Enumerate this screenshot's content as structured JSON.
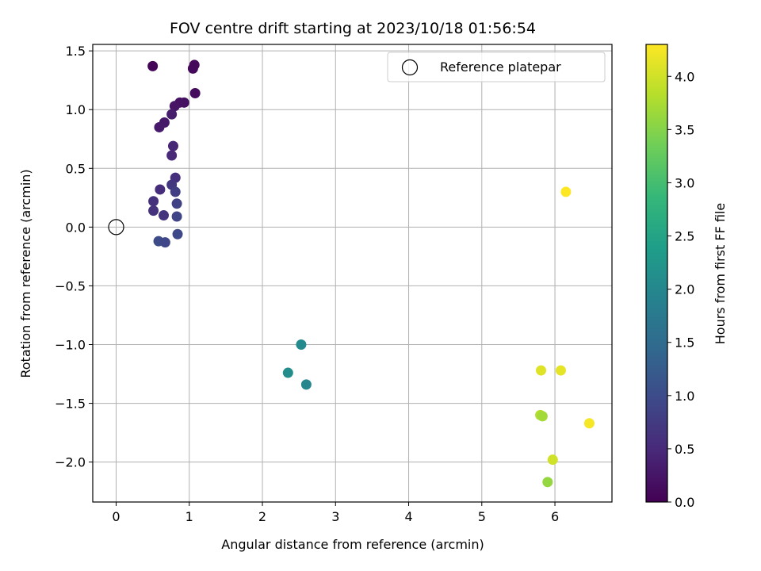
{
  "chart_data": {
    "type": "scatter",
    "title": "FOV centre drift starting at 2023/10/18 01:56:54",
    "xlabel": "Angular distance from reference (arcmin)",
    "ylabel": "Rotation from reference (arcmin)",
    "xlim": [
      -0.32,
      6.78
    ],
    "ylim": [
      -2.34,
      1.555
    ],
    "xticks": [
      0,
      1,
      2,
      3,
      4,
      5,
      6
    ],
    "xtick_labels": [
      "0",
      "1",
      "2",
      "3",
      "4",
      "5",
      "6"
    ],
    "yticks": [
      -2.0,
      -1.5,
      -1.0,
      -0.5,
      0.0,
      0.5,
      1.0,
      1.5
    ],
    "ytick_labels": [
      "−2.0",
      "−1.5",
      "−1.0",
      "−0.5",
      "0.0",
      "0.5",
      "1.0",
      "1.5"
    ],
    "grid": true,
    "colormap": "viridis",
    "colorbar": {
      "label": "Hours from first FF file",
      "range": [
        0.0,
        4.3
      ],
      "ticks": [
        0.0,
        0.5,
        1.0,
        1.5,
        2.0,
        2.5,
        3.0,
        3.5,
        4.0
      ],
      "tick_labels": [
        "0.0",
        "0.5",
        "1.0",
        "1.5",
        "2.0",
        "2.5",
        "3.0",
        "3.5",
        "4.0"
      ]
    },
    "legend": {
      "placement": "top-right",
      "entries": [
        {
          "label": "Reference platepar",
          "marker": "open-circle"
        }
      ]
    },
    "reference_point": {
      "x": 0.0,
      "y": 0.0
    },
    "points": [
      {
        "x": 0.5,
        "y": 1.37,
        "hours": 0.05
      },
      {
        "x": 1.07,
        "y": 1.38,
        "hours": 0.08
      },
      {
        "x": 1.05,
        "y": 1.35,
        "hours": 0.1
      },
      {
        "x": 1.08,
        "y": 1.14,
        "hours": 0.13
      },
      {
        "x": 0.93,
        "y": 1.06,
        "hours": 0.18
      },
      {
        "x": 0.87,
        "y": 1.06,
        "hours": 0.2
      },
      {
        "x": 0.8,
        "y": 1.03,
        "hours": 0.22
      },
      {
        "x": 0.76,
        "y": 0.96,
        "hours": 0.35
      },
      {
        "x": 0.66,
        "y": 0.89,
        "hours": 0.28
      },
      {
        "x": 0.59,
        "y": 0.85,
        "hours": 0.3
      },
      {
        "x": 0.78,
        "y": 0.69,
        "hours": 0.45
      },
      {
        "x": 0.76,
        "y": 0.61,
        "hours": 0.5
      },
      {
        "x": 0.81,
        "y": 0.42,
        "hours": 0.58
      },
      {
        "x": 0.76,
        "y": 0.36,
        "hours": 0.7
      },
      {
        "x": 0.81,
        "y": 0.3,
        "hours": 0.8
      },
      {
        "x": 0.6,
        "y": 0.32,
        "hours": 0.55
      },
      {
        "x": 0.51,
        "y": 0.22,
        "hours": 0.6
      },
      {
        "x": 0.83,
        "y": 0.2,
        "hours": 0.85
      },
      {
        "x": 0.51,
        "y": 0.14,
        "hours": 0.62
      },
      {
        "x": 0.65,
        "y": 0.1,
        "hours": 0.65
      },
      {
        "x": 0.83,
        "y": 0.09,
        "hours": 0.9
      },
      {
        "x": 0.84,
        "y": -0.06,
        "hours": 0.95
      },
      {
        "x": 0.58,
        "y": -0.12,
        "hours": 1.0
      },
      {
        "x": 0.67,
        "y": -0.13,
        "hours": 0.92
      },
      {
        "x": 2.53,
        "y": -1.0,
        "hours": 2.05
      },
      {
        "x": 2.35,
        "y": -1.24,
        "hours": 2.1
      },
      {
        "x": 2.6,
        "y": -1.34,
        "hours": 2.0
      },
      {
        "x": 6.15,
        "y": 0.3,
        "hours": 4.3
      },
      {
        "x": 5.81,
        "y": -1.22,
        "hours": 4.1
      },
      {
        "x": 6.08,
        "y": -1.22,
        "hours": 4.15
      },
      {
        "x": 5.8,
        "y": -1.6,
        "hours": 3.8
      },
      {
        "x": 5.83,
        "y": -1.61,
        "hours": 3.7
      },
      {
        "x": 6.47,
        "y": -1.67,
        "hours": 4.25
      },
      {
        "x": 5.97,
        "y": -1.98,
        "hours": 4.0
      },
      {
        "x": 5.9,
        "y": -2.17,
        "hours": 3.6
      }
    ]
  }
}
